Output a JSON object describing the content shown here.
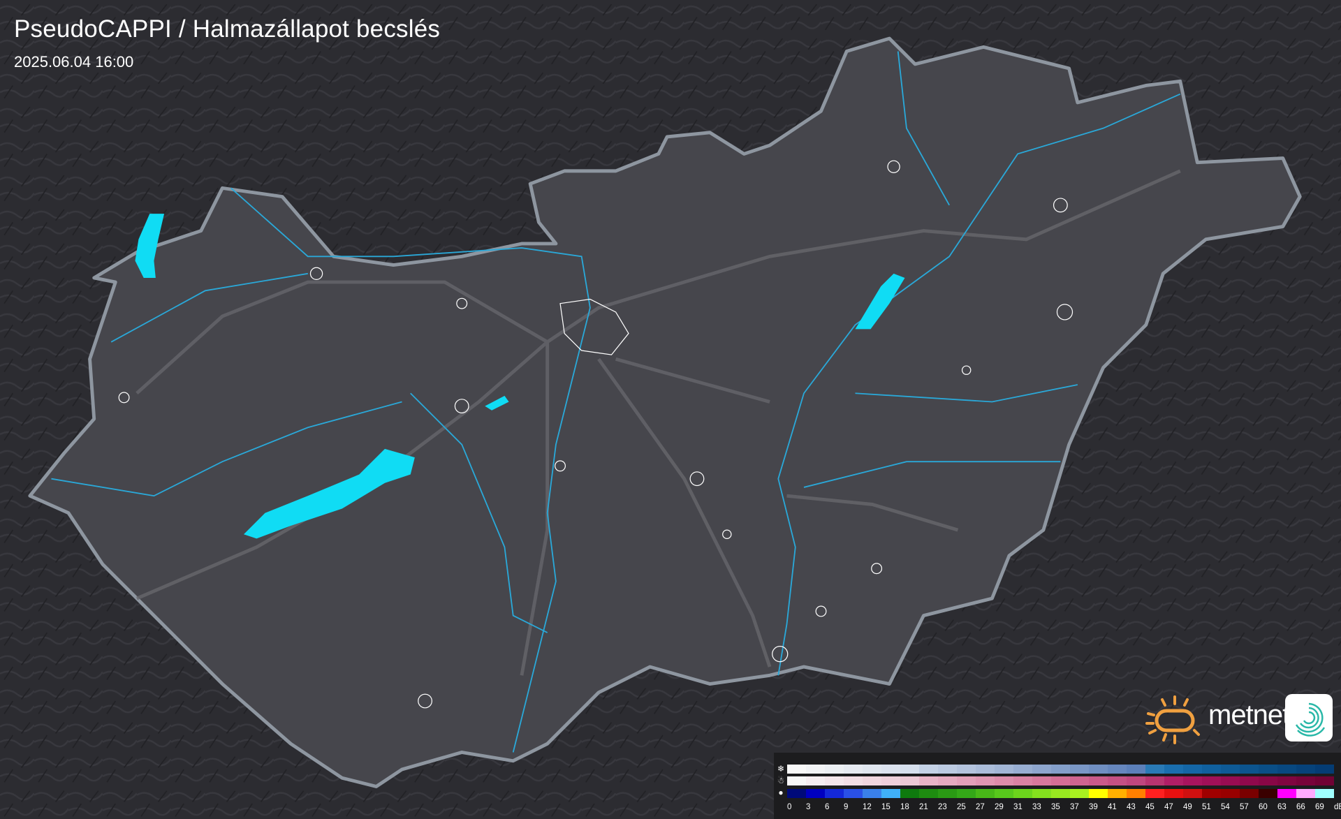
{
  "header": {
    "title": "PseudoCAPPI  / Halmazállapot becslés",
    "timestamp": "2025.06.04 16:00"
  },
  "logo": {
    "brand": "metnet"
  },
  "legend": {
    "rows": [
      {
        "icon": "snowflake-icon",
        "symbol": "❄",
        "colors": [
          "#f8f8f8",
          "#f2f3f5",
          "#eceff3",
          "#e6eaf1",
          "#e0e6ef",
          "#dbe2ee",
          "#d6dfed",
          "#c4d2e6",
          "#bccbe2",
          "#b4c4de",
          "#abbdda",
          "#a2b6d6",
          "#98aed2",
          "#8ea6ce",
          "#849fca",
          "#7a97c6",
          "#708fc2",
          "#6687be",
          "#5c80ba",
          "#2a7ab6",
          "#1a6eae",
          "#1466a6",
          "#10609e",
          "#0e5a96",
          "#0c548e",
          "#0a4e86",
          "#084880",
          "#06427a",
          "#043c74"
        ]
      },
      {
        "icon": "sleet-icon",
        "symbol": "☃",
        "colors": [
          "#f8f8f8",
          "#f6eef1",
          "#f4e6eb",
          "#f2dee5",
          "#f0d6df",
          "#eecfda",
          "#ecc8d5",
          "#e9b4c7",
          "#e6aac0",
          "#e3a0b9",
          "#e096b2",
          "#dd8cab",
          "#da82a4",
          "#d7789d",
          "#d46e96",
          "#cf6490",
          "#ca5a8a",
          "#c55084",
          "#c0467e",
          "#b83470",
          "#b01e66",
          "#a8145e",
          "#a01058",
          "#980c52",
          "#90094c",
          "#880746",
          "#800540",
          "#78033a",
          "#700234"
        ]
      },
      {
        "icon": "raindrop-icon",
        "symbol": "●",
        "colors": [
          "#000a7a",
          "#0000c0",
          "#1428d8",
          "#2a50e6",
          "#3a80ea",
          "#40b0f8",
          "#0e7a0e",
          "#1e8c10",
          "#2a9a14",
          "#34a818",
          "#48b818",
          "#58c81c",
          "#6cd41c",
          "#84e01e",
          "#98e820",
          "#a8f020",
          "#ffff00",
          "#ffb000",
          "#ff8000",
          "#ff2020",
          "#e81010",
          "#d01010",
          "#a00000",
          "#980000",
          "#7a0000",
          "#3a0000",
          "#ff00ff",
          "#ffaaff",
          "#a0ffff"
        ]
      }
    ],
    "labels": [
      "0",
      "3",
      "6",
      "9",
      "12",
      "15",
      "18",
      "21",
      "23",
      "25",
      "27",
      "29",
      "31",
      "33",
      "35",
      "37",
      "39",
      "41",
      "43",
      "45",
      "47",
      "49",
      "51",
      "54",
      "57",
      "60",
      "63",
      "66",
      "69",
      "dBZ"
    ]
  },
  "colors": {
    "country_fill": "#46464c",
    "border": "#8e96a0",
    "river": "#2aa8d8",
    "lake": "#10dcf4",
    "roads": "#6a6a70",
    "settlements": "#ffffff",
    "logo_sun": "#f0a040"
  }
}
